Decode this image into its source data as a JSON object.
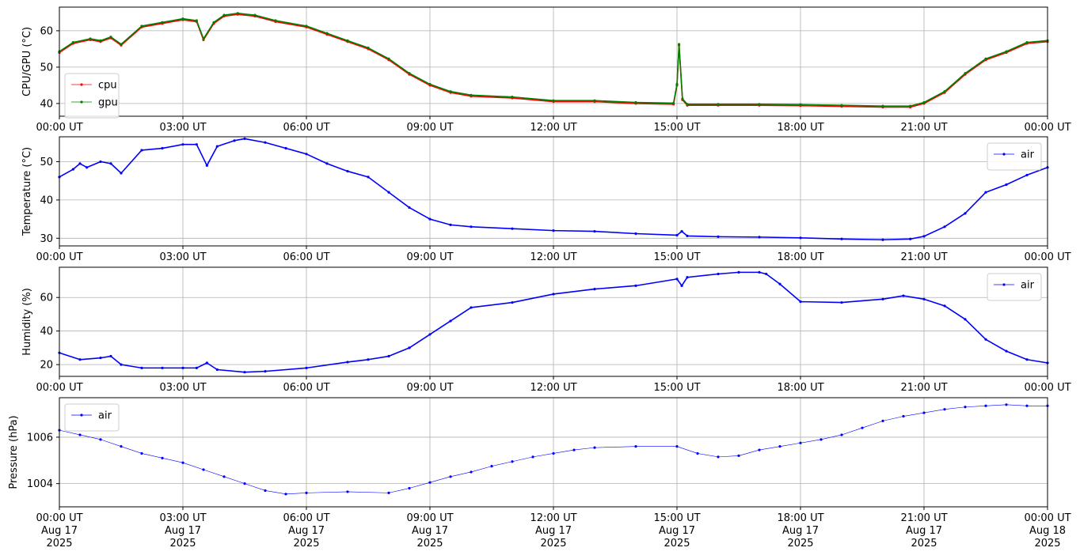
{
  "figure": {
    "background": "#ffffff"
  },
  "chart_data": [
    {
      "type": "line",
      "ylabel": "CPU/GPU (°C)",
      "xlim": [
        "2025-08-17 00:00",
        "2025-08-18 00:00"
      ],
      "ylim": [
        36.5,
        66.5
      ],
      "yticks": [
        40,
        50,
        60
      ],
      "xtick_labels": [
        "00:00 UT",
        "03:00 UT",
        "06:00 UT",
        "09:00 UT",
        "12:00 UT",
        "15:00 UT",
        "18:00 UT",
        "21:00 UT",
        "00:00 UT"
      ],
      "grid": true,
      "legend": {
        "placement": "lower-left"
      },
      "series": [
        {
          "name": "cpu",
          "color": "#ff0000",
          "x": [
            "2025-08-17 00:00",
            "2025-08-17 00:20",
            "2025-08-17 00:45",
            "2025-08-17 01:00",
            "2025-08-17 01:15",
            "2025-08-17 01:30",
            "2025-08-17 02:00",
            "2025-08-17 02:30",
            "2025-08-17 03:00",
            "2025-08-17 03:20",
            "2025-08-17 03:30",
            "2025-08-17 03:45",
            "2025-08-17 04:00",
            "2025-08-17 04:20",
            "2025-08-17 04:45",
            "2025-08-17 05:15",
            "2025-08-17 06:00",
            "2025-08-17 06:30",
            "2025-08-17 07:00",
            "2025-08-17 07:30",
            "2025-08-17 08:00",
            "2025-08-17 08:30",
            "2025-08-17 09:00",
            "2025-08-17 09:30",
            "2025-08-17 10:00",
            "2025-08-17 11:00",
            "2025-08-17 12:00",
            "2025-08-17 13:00",
            "2025-08-17 14:00",
            "2025-08-17 14:55",
            "2025-08-17 15:00",
            "2025-08-17 15:03",
            "2025-08-17 15:08",
            "2025-08-17 15:15",
            "2025-08-17 16:00",
            "2025-08-17 17:00",
            "2025-08-17 18:00",
            "2025-08-17 19:00",
            "2025-08-17 20:00",
            "2025-08-17 20:40",
            "2025-08-17 21:00",
            "2025-08-17 21:30",
            "2025-08-17 22:00",
            "2025-08-17 22:30",
            "2025-08-17 23:00",
            "2025-08-17 23:30",
            "2025-08-18 00:00"
          ],
          "values": [
            54,
            56.5,
            57.5,
            57,
            58,
            56,
            61,
            62,
            63,
            62.5,
            57.5,
            62,
            64,
            64.5,
            64,
            62.5,
            61,
            59,
            57,
            55,
            52,
            48,
            45,
            43,
            42,
            41.5,
            40.5,
            40.5,
            40,
            39.8,
            45,
            56,
            41,
            39.5,
            39.5,
            39.5,
            39.4,
            39.2,
            39,
            39,
            40,
            43,
            48,
            52,
            54,
            56.5,
            57
          ]
        },
        {
          "name": "gpu",
          "color": "#008000",
          "x": [
            "2025-08-17 00:00",
            "2025-08-17 00:20",
            "2025-08-17 00:45",
            "2025-08-17 01:00",
            "2025-08-17 01:15",
            "2025-08-17 01:30",
            "2025-08-17 02:00",
            "2025-08-17 02:30",
            "2025-08-17 03:00",
            "2025-08-17 03:20",
            "2025-08-17 03:30",
            "2025-08-17 03:45",
            "2025-08-17 04:00",
            "2025-08-17 04:20",
            "2025-08-17 04:45",
            "2025-08-17 05:15",
            "2025-08-17 06:00",
            "2025-08-17 06:30",
            "2025-08-17 07:00",
            "2025-08-17 07:30",
            "2025-08-17 08:00",
            "2025-08-17 08:30",
            "2025-08-17 09:00",
            "2025-08-17 09:30",
            "2025-08-17 10:00",
            "2025-08-17 11:00",
            "2025-08-17 12:00",
            "2025-08-17 13:00",
            "2025-08-17 14:00",
            "2025-08-17 14:55",
            "2025-08-17 15:00",
            "2025-08-17 15:03",
            "2025-08-17 15:08",
            "2025-08-17 15:15",
            "2025-08-17 16:00",
            "2025-08-17 17:00",
            "2025-08-17 18:00",
            "2025-08-17 19:00",
            "2025-08-17 20:00",
            "2025-08-17 20:40",
            "2025-08-17 21:00",
            "2025-08-17 21:30",
            "2025-08-17 22:00",
            "2025-08-17 22:30",
            "2025-08-17 23:00",
            "2025-08-17 23:30",
            "2025-08-18 00:00"
          ],
          "values": [
            54.3,
            56.8,
            57.8,
            57.3,
            58.3,
            56.3,
            61.3,
            62.3,
            63.3,
            62.8,
            57.8,
            62.3,
            64.3,
            64.8,
            64.3,
            62.8,
            61.3,
            59.3,
            57.3,
            55.3,
            52.3,
            48.3,
            45.3,
            43.3,
            42.3,
            41.8,
            40.8,
            40.8,
            40.3,
            40.1,
            45.3,
            56.3,
            41.3,
            39.8,
            39.8,
            39.8,
            39.7,
            39.5,
            39.3,
            39.3,
            40.3,
            43.3,
            48.3,
            52.3,
            54.3,
            56.8,
            57.3
          ]
        }
      ]
    },
    {
      "type": "line",
      "ylabel": "Temperature (°C)",
      "xlim": [
        "2025-08-17 00:00",
        "2025-08-18 00:00"
      ],
      "ylim": [
        28,
        56.5
      ],
      "yticks": [
        30,
        40,
        50
      ],
      "xtick_labels": [
        "00:00 UT",
        "03:00 UT",
        "06:00 UT",
        "09:00 UT",
        "12:00 UT",
        "15:00 UT",
        "18:00 UT",
        "21:00 UT",
        "00:00 UT"
      ],
      "grid": true,
      "legend": {
        "placement": "upper-right"
      },
      "series": [
        {
          "name": "air",
          "color": "#0000ff",
          "x": [
            "2025-08-17 00:00",
            "2025-08-17 00:20",
            "2025-08-17 00:30",
            "2025-08-17 00:40",
            "2025-08-17 01:00",
            "2025-08-17 01:15",
            "2025-08-17 01:30",
            "2025-08-17 02:00",
            "2025-08-17 02:30",
            "2025-08-17 03:00",
            "2025-08-17 03:20",
            "2025-08-17 03:35",
            "2025-08-17 03:50",
            "2025-08-17 04:15",
            "2025-08-17 04:30",
            "2025-08-17 05:00",
            "2025-08-17 05:30",
            "2025-08-17 06:00",
            "2025-08-17 06:30",
            "2025-08-17 07:00",
            "2025-08-17 07:30",
            "2025-08-17 08:00",
            "2025-08-17 08:30",
            "2025-08-17 09:00",
            "2025-08-17 09:30",
            "2025-08-17 10:00",
            "2025-08-17 11:00",
            "2025-08-17 12:00",
            "2025-08-17 13:00",
            "2025-08-17 14:00",
            "2025-08-17 15:00",
            "2025-08-17 15:07",
            "2025-08-17 15:15",
            "2025-08-17 16:00",
            "2025-08-17 17:00",
            "2025-08-17 18:00",
            "2025-08-17 19:00",
            "2025-08-17 20:00",
            "2025-08-17 20:40",
            "2025-08-17 21:00",
            "2025-08-17 21:30",
            "2025-08-17 22:00",
            "2025-08-17 22:30",
            "2025-08-17 23:00",
            "2025-08-17 23:30",
            "2025-08-18 00:00"
          ],
          "values": [
            46,
            48,
            49.5,
            48.5,
            50,
            49.5,
            47,
            53,
            53.5,
            54.5,
            54.5,
            49,
            54,
            55.5,
            56,
            55,
            53.5,
            52,
            49.5,
            47.5,
            46,
            42,
            38,
            35,
            33.5,
            33,
            32.5,
            32,
            31.8,
            31.2,
            30.8,
            31.8,
            30.6,
            30.4,
            30.3,
            30.1,
            29.8,
            29.6,
            29.8,
            30.5,
            33,
            36.5,
            42,
            44,
            46.5,
            48.5
          ]
        }
      ]
    },
    {
      "type": "line",
      "ylabel": "Humidity (%)",
      "xlim": [
        "2025-08-17 00:00",
        "2025-08-18 00:00"
      ],
      "ylim": [
        13,
        78
      ],
      "yticks": [
        20,
        40,
        60
      ],
      "xtick_labels": [
        "00:00 UT",
        "03:00 UT",
        "06:00 UT",
        "09:00 UT",
        "12:00 UT",
        "15:00 UT",
        "18:00 UT",
        "21:00 UT",
        "00:00 UT"
      ],
      "grid": true,
      "legend": {
        "placement": "upper-right"
      },
      "series": [
        {
          "name": "air",
          "color": "#0000ff",
          "x": [
            "2025-08-17 00:00",
            "2025-08-17 00:30",
            "2025-08-17 01:00",
            "2025-08-17 01:15",
            "2025-08-17 01:30",
            "2025-08-17 02:00",
            "2025-08-17 02:30",
            "2025-08-17 03:00",
            "2025-08-17 03:20",
            "2025-08-17 03:35",
            "2025-08-17 03:50",
            "2025-08-17 04:30",
            "2025-08-17 05:00",
            "2025-08-17 06:00",
            "2025-08-17 07:00",
            "2025-08-17 07:30",
            "2025-08-17 08:00",
            "2025-08-17 08:30",
            "2025-08-17 09:00",
            "2025-08-17 09:30",
            "2025-08-17 10:00",
            "2025-08-17 11:00",
            "2025-08-17 12:00",
            "2025-08-17 13:00",
            "2025-08-17 14:00",
            "2025-08-17 15:00",
            "2025-08-17 15:07",
            "2025-08-17 15:15",
            "2025-08-17 16:00",
            "2025-08-17 16:30",
            "2025-08-17 17:00",
            "2025-08-17 17:10",
            "2025-08-17 17:30",
            "2025-08-17 18:00",
            "2025-08-17 19:00",
            "2025-08-17 20:00",
            "2025-08-17 20:30",
            "2025-08-17 21:00",
            "2025-08-17 21:30",
            "2025-08-17 22:00",
            "2025-08-17 22:30",
            "2025-08-17 23:00",
            "2025-08-17 23:30",
            "2025-08-18 00:00"
          ],
          "values": [
            27,
            23,
            24,
            25,
            20,
            18,
            18,
            18,
            18,
            21,
            17,
            15.5,
            16,
            18,
            21.5,
            23,
            25,
            30,
            38,
            46,
            54,
            57,
            62,
            65,
            67,
            71,
            67,
            72,
            74,
            75,
            75,
            74,
            68,
            57.5,
            57,
            59,
            61,
            59,
            55,
            47,
            35,
            28,
            23,
            21
          ]
        }
      ]
    },
    {
      "type": "scatter",
      "ylabel": "Pressure (hPa)",
      "xlim": [
        "2025-08-17 00:00",
        "2025-08-18 00:00"
      ],
      "ylim": [
        1003,
        1007.7
      ],
      "yticks": [
        1004,
        1006
      ],
      "xtick_labels": [
        "00:00 UT\nAug 17\n2025",
        "03:00 UT\nAug 17\n2025",
        "06:00 UT\nAug 17\n2025",
        "09:00 UT\nAug 17\n2025",
        "12:00 UT\nAug 17\n2025",
        "15:00 UT\nAug 17\n2025",
        "18:00 UT\nAug 17\n2025",
        "21:00 UT\nAug 17\n2025",
        "00:00 UT\nAug 18\n2025"
      ],
      "grid": true,
      "legend": {
        "placement": "upper-left"
      },
      "series": [
        {
          "name": "air",
          "color": "#0000ff",
          "x": [
            "2025-08-17 00:00",
            "2025-08-17 00:30",
            "2025-08-17 01:00",
            "2025-08-17 01:30",
            "2025-08-17 02:00",
            "2025-08-17 02:30",
            "2025-08-17 03:00",
            "2025-08-17 03:30",
            "2025-08-17 04:00",
            "2025-08-17 04:30",
            "2025-08-17 05:00",
            "2025-08-17 05:30",
            "2025-08-17 06:00",
            "2025-08-17 07:00",
            "2025-08-17 08:00",
            "2025-08-17 08:30",
            "2025-08-17 09:00",
            "2025-08-17 09:30",
            "2025-08-17 10:00",
            "2025-08-17 10:30",
            "2025-08-17 11:00",
            "2025-08-17 11:30",
            "2025-08-17 12:00",
            "2025-08-17 12:30",
            "2025-08-17 13:00",
            "2025-08-17 14:00",
            "2025-08-17 15:00",
            "2025-08-17 15:30",
            "2025-08-17 16:00",
            "2025-08-17 16:30",
            "2025-08-17 17:00",
            "2025-08-17 17:30",
            "2025-08-17 18:00",
            "2025-08-17 18:30",
            "2025-08-17 19:00",
            "2025-08-17 19:30",
            "2025-08-17 20:00",
            "2025-08-17 20:30",
            "2025-08-17 21:00",
            "2025-08-17 21:30",
            "2025-08-17 22:00",
            "2025-08-17 22:30",
            "2025-08-17 23:00",
            "2025-08-17 23:30",
            "2025-08-18 00:00"
          ],
          "values": [
            1006.3,
            1006.1,
            1005.9,
            1005.6,
            1005.3,
            1005.1,
            1004.9,
            1004.6,
            1004.3,
            1004,
            1003.7,
            1003.55,
            1003.6,
            1003.65,
            1003.6,
            1003.8,
            1004.05,
            1004.3,
            1004.5,
            1004.75,
            1004.95,
            1005.15,
            1005.3,
            1005.45,
            1005.55,
            1005.6,
            1005.6,
            1005.3,
            1005.15,
            1005.2,
            1005.45,
            1005.6,
            1005.75,
            1005.9,
            1006.1,
            1006.4,
            1006.7,
            1006.9,
            1007.05,
            1007.2,
            1007.3,
            1007.35,
            1007.4,
            1007.35,
            1007.35
          ]
        }
      ]
    }
  ]
}
